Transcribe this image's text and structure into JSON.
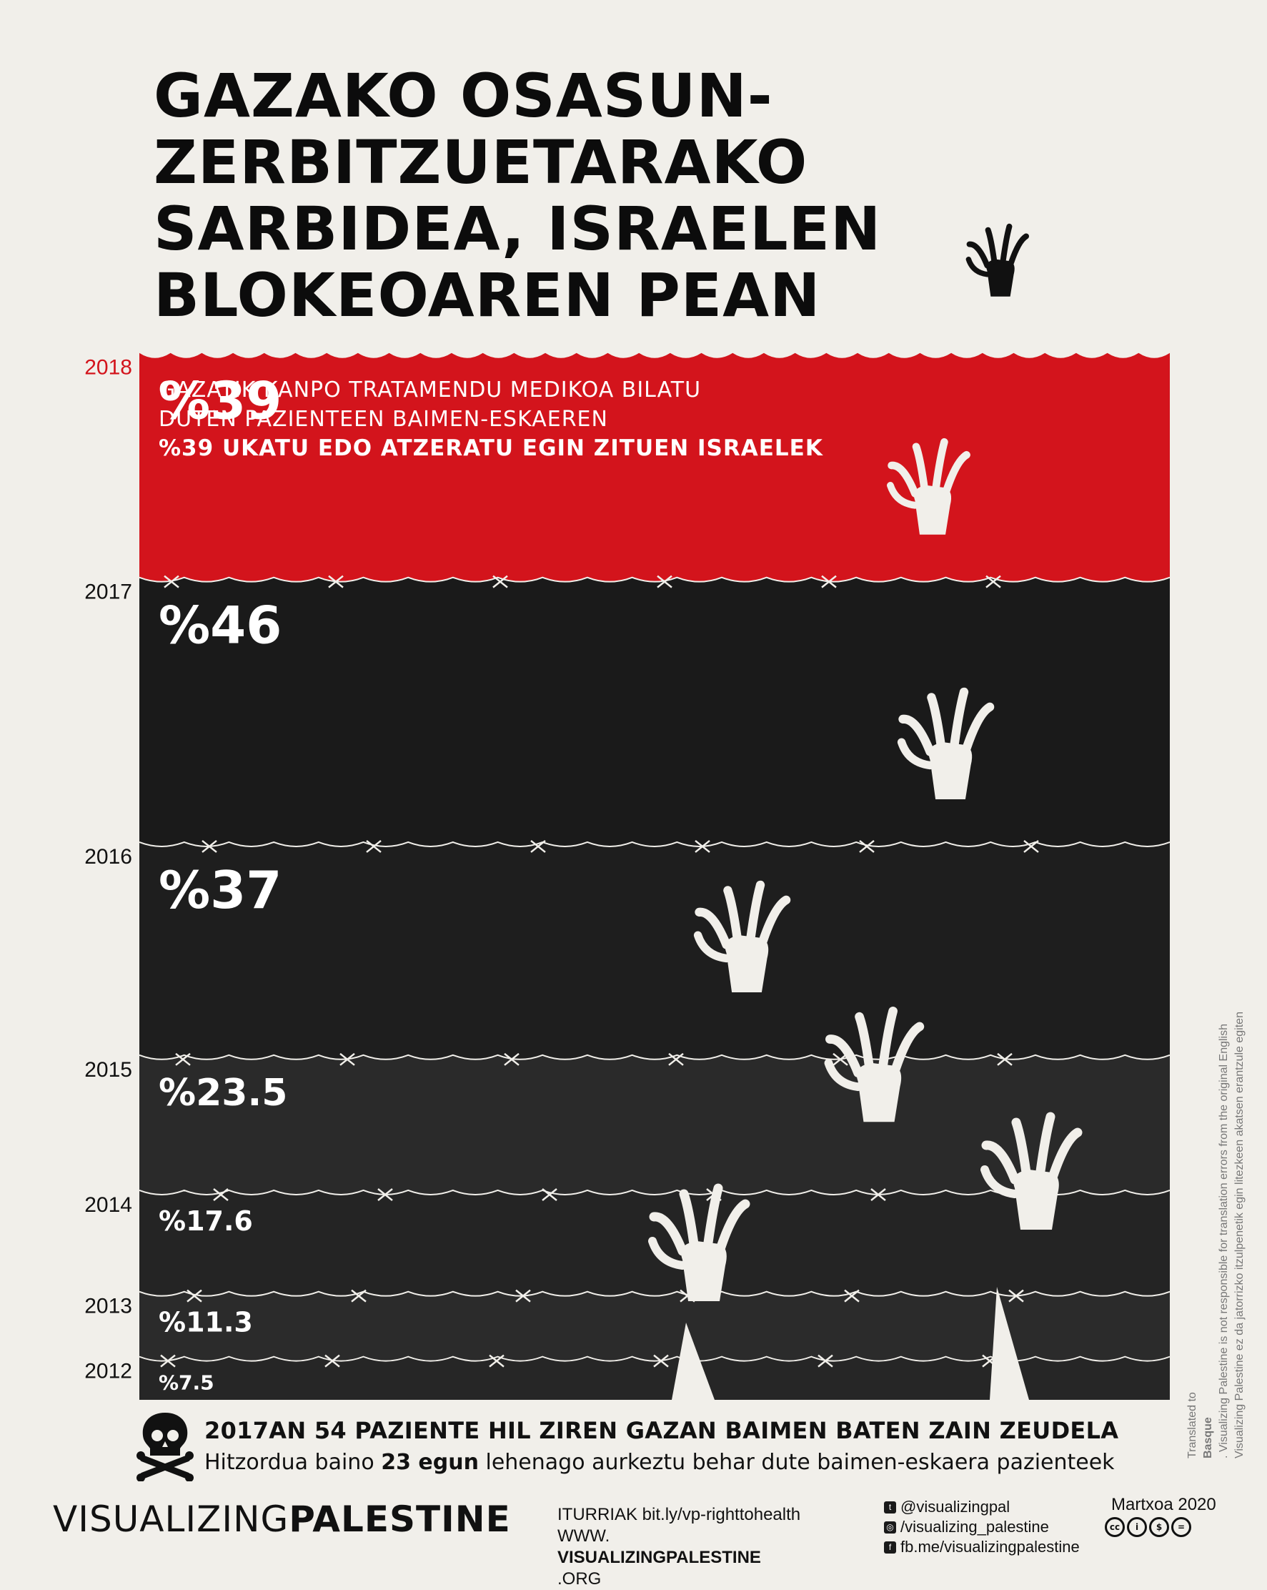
{
  "title_lines": [
    "GAZAKO OSASUN-",
    "ZERBITZUETARAKO",
    "SARBIDEA, ISRAELEN",
    "BLOKEOAREN PEAN"
  ],
  "chart_data": {
    "type": "bar",
    "orientation": "vertical-stacked-bands",
    "categories": [
      "2012",
      "2013",
      "2014",
      "2015",
      "2016",
      "2017",
      "2018"
    ],
    "values": [
      7.5,
      11.3,
      17.6,
      23.5,
      37,
      46,
      39
    ],
    "value_labels": [
      "%7.5",
      "%11.3",
      "%17.6",
      "%23.5",
      "%37",
      "%46",
      "%39"
    ],
    "ylabel": "",
    "highlight_year": "2018",
    "colors": {
      "highlight": "#d3141c",
      "band": "#1c1c1c",
      "background": "#f1efea"
    }
  },
  "lead": {
    "line1": "GAZATIK KANPO TRATAMENDU MEDIKOA BILATU",
    "line2": "DUTEN PAZIENTEEN BAIMEN-ESKAEREN",
    "line3": "%39 UKATU EDO ATZERATU EGIN ZITUEN ISRAELEK"
  },
  "facts": {
    "deaths": "2017AN 54 PAZIENTE HIL ZIREN GAZAN BAIMEN BATEN ZAIN ZEUDELA",
    "days_pre": "Hitzordua baino ",
    "days_bold": "23 egun",
    "days_post": " lehenago aurkeztu behar dute baimen-eskaera pazienteek"
  },
  "footer": {
    "brand_light": "VISUALIZING",
    "brand_bold": "PALESTINE",
    "sources_line": "ITURRIAK bit.ly/vp-righttohealth",
    "site_pre": "WWW.",
    "site_bold": "VISUALIZINGPALESTINE",
    "site_post": ".ORG",
    "twitter": "@visualizingpal",
    "instagram": "/visualizing_palestine",
    "facebook": "fb.me/visualizingpalestine",
    "date": "Martxoa 2020",
    "disclaimer_pre": "Translated to ",
    "disclaimer_bold": "Basque",
    "disclaimer_post": ". Visualizing Palestine is not responsible for translation errors from the original English",
    "disclaimer_line2": "Visualizing Palestine ez da jatorrizko itzulpenetik egin litezkeen akatsen erantzule egiten"
  },
  "icons": [
    "skull-crossbones-icon",
    "hand-icon",
    "barbed-wire-icon",
    "twitter-icon",
    "instagram-icon",
    "facebook-icon",
    "creative-commons-icon"
  ]
}
